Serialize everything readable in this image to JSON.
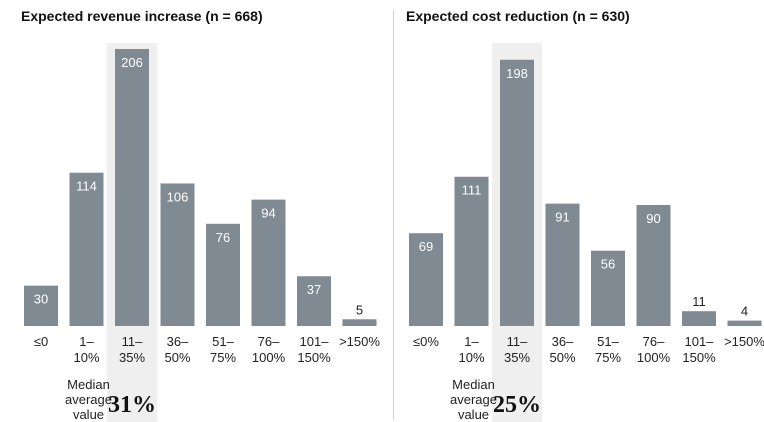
{
  "chart_data": [
    {
      "type": "bar",
      "title": "Expected revenue increase (n = 668)",
      "categories": [
        "≤0",
        "1–\n10%",
        "11–\n35%",
        "36–\n50%",
        "51–\n75%",
        "76–\n100%",
        "101–\n150%",
        ">150%"
      ],
      "values": [
        30,
        114,
        206,
        106,
        76,
        94,
        37,
        5
      ],
      "highlight_category": "11–\n35%",
      "median_label": "Median\naverage\nvalue",
      "median_value": "31%",
      "ylim": [
        0,
        206
      ],
      "grid": false,
      "legend": "none"
    },
    {
      "type": "bar",
      "title": "Expected cost reduction (n = 630)",
      "categories": [
        "≤0%",
        "1–\n10%",
        "11–\n35%",
        "36–\n50%",
        "51–\n75%",
        "76–\n100%",
        "101–\n150%",
        ">150%"
      ],
      "values": [
        69,
        111,
        198,
        91,
        56,
        90,
        11,
        4
      ],
      "highlight_category": "11–\n35%",
      "median_label": "Median\naverage\nvalue",
      "median_value": "25%",
      "ylim": [
        0,
        206
      ],
      "grid": false,
      "legend": "none"
    }
  ],
  "colors": {
    "bar": "#7f8a93",
    "highlight": "#efefef"
  }
}
